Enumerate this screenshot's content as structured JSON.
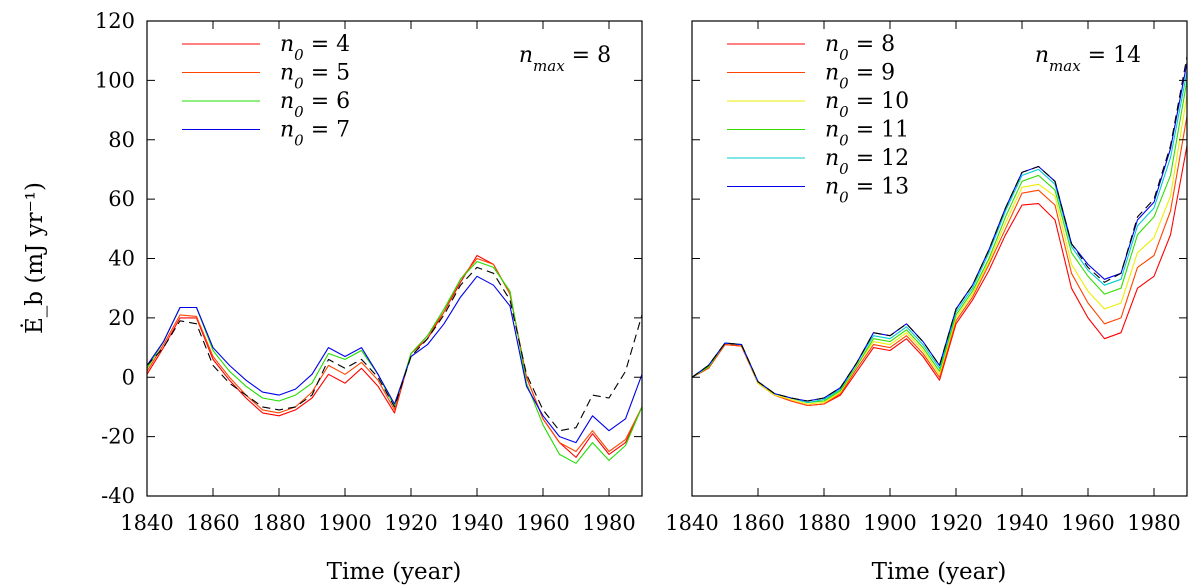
{
  "chart_data": [
    {
      "type": "line",
      "panel": "left",
      "xlabel": "Time (year)",
      "ylabel": "Ė_b (mJ yr⁻¹)",
      "xlim": [
        1840,
        1990
      ],
      "ylim": [
        -40,
        120
      ],
      "xticks": [
        "1840",
        "1860",
        "1880",
        "1900",
        "1920",
        "1940",
        "1960",
        "1980"
      ],
      "yticks": [
        "-40",
        "-20",
        "0",
        "20",
        "40",
        "60",
        "80",
        "100",
        "120"
      ],
      "annotation": "n_max = 8",
      "legend_position": "top-left",
      "x": [
        1840,
        1845,
        1850,
        1855,
        1860,
        1865,
        1870,
        1875,
        1880,
        1885,
        1890,
        1895,
        1900,
        1905,
        1910,
        1915,
        1920,
        1925,
        1930,
        1935,
        1940,
        1945,
        1950,
        1955,
        1960,
        1965,
        1970,
        1975,
        1980,
        1985,
        1990
      ],
      "series": [
        {
          "name": "n_0 = 4",
          "color": "#ff0000",
          "dash": false,
          "values": [
            1,
            10,
            20,
            20,
            6,
            -1,
            -7,
            -12,
            -13,
            -11,
            -7,
            1,
            -2,
            3,
            -3,
            -12,
            8,
            13,
            22,
            32,
            41,
            38,
            28,
            0,
            -14,
            -22,
            -27,
            -19,
            -26,
            -22,
            -10
          ]
        },
        {
          "name": "n_0 = 5",
          "color": "#ff4400",
          "dash": false,
          "values": [
            2,
            11,
            21,
            20.5,
            7,
            0,
            -6,
            -11,
            -12,
            -10,
            -5,
            4,
            1,
            5,
            -1,
            -11,
            8,
            14,
            22,
            33,
            40,
            38,
            28,
            0,
            -14,
            -22,
            -25,
            -18,
            -25,
            -21,
            -10
          ]
        },
        {
          "name": "n_0 = 6",
          "color": "#22dd00",
          "dash": false,
          "values": [
            3,
            12,
            23.5,
            23.5,
            9,
            2,
            -3,
            -7,
            -8,
            -6,
            -2,
            8,
            6,
            9,
            1,
            -10,
            8,
            14,
            23,
            33,
            39,
            37,
            29,
            -2,
            -16,
            -26,
            -29,
            -22,
            -28,
            -23,
            -10
          ]
        },
        {
          "name": "n_0 = 7",
          "color": "#0000ee",
          "dash": false,
          "values": [
            4,
            12,
            23.5,
            23.5,
            10,
            4,
            -1,
            -5,
            -6,
            -4,
            1,
            10,
            7,
            10,
            1,
            -9,
            7,
            11,
            18,
            27,
            34,
            31,
            24,
            -3,
            -13,
            -20,
            -22,
            -13,
            -18,
            -14,
            1
          ]
        },
        {
          "name": "",
          "color": "#000000",
          "dash": true,
          "values": [
            4,
            10,
            19,
            18,
            4,
            -2,
            -6,
            -10,
            -11,
            -10,
            -6,
            6,
            3,
            6,
            0,
            -10,
            7,
            13,
            21,
            31,
            37,
            35,
            26,
            1,
            -11,
            -18,
            -17,
            -6,
            -7,
            2,
            21
          ]
        }
      ]
    },
    {
      "type": "line",
      "panel": "right",
      "xlabel": "Time (year)",
      "ylabel": "",
      "xlim": [
        1840,
        1990
      ],
      "ylim": [
        -40,
        120
      ],
      "xticks": [
        "1840",
        "1860",
        "1880",
        "1900",
        "1920",
        "1940",
        "1960",
        "1980"
      ],
      "yticks": [],
      "annotation": "n_max = 14",
      "legend_position": "top-left",
      "x": [
        1840,
        1845,
        1850,
        1855,
        1860,
        1865,
        1870,
        1875,
        1880,
        1885,
        1890,
        1895,
        1900,
        1905,
        1910,
        1915,
        1920,
        1925,
        1930,
        1935,
        1940,
        1945,
        1950,
        1955,
        1960,
        1965,
        1970,
        1975,
        1980,
        1985,
        1990
      ],
      "series": [
        {
          "name": "n_0 = 8",
          "color": "#ff0000",
          "dash": false,
          "values": [
            0,
            3,
            11,
            10.5,
            -2,
            -6,
            -8,
            -9.5,
            -9,
            -6,
            2,
            10,
            9,
            13,
            7,
            -1,
            18,
            26,
            36,
            48,
            58,
            58.5,
            53,
            30,
            20,
            13,
            15,
            30,
            34,
            48,
            78
          ]
        },
        {
          "name": "n_0 = 9",
          "color": "#ff4400",
          "dash": false,
          "values": [
            0,
            3,
            11,
            10.5,
            -2,
            -6,
            -8,
            -9.5,
            -9,
            -5.5,
            3,
            11,
            10,
            14,
            8,
            0,
            19,
            27,
            38,
            50,
            62,
            63,
            58,
            35,
            25,
            18,
            20,
            37,
            41,
            56,
            88
          ]
        },
        {
          "name": "n_0 = 10",
          "color": "#eeee00",
          "dash": false,
          "values": [
            0,
            3.5,
            11.5,
            11,
            -2,
            -6,
            -7.5,
            -9,
            -8.5,
            -5,
            4,
            12,
            11,
            15,
            9,
            1,
            20,
            28,
            39,
            52,
            64,
            65,
            61,
            38,
            29,
            23,
            25,
            42,
            47,
            61,
            95
          ]
        },
        {
          "name": "n_0 = 11",
          "color": "#33dd00",
          "dash": false,
          "values": [
            0,
            3.5,
            11.5,
            11,
            -1.5,
            -5.5,
            -7,
            -8.5,
            -8,
            -4.5,
            4,
            13,
            12,
            16,
            10,
            2,
            21,
            29,
            40,
            54,
            66,
            68,
            63,
            42,
            34,
            28,
            30,
            48,
            54,
            68,
            100
          ]
        },
        {
          "name": "n_0 = 12",
          "color": "#00cccc",
          "dash": false,
          "values": [
            0,
            4,
            11.5,
            11,
            -1.5,
            -5.5,
            -7,
            -8.5,
            -7.5,
            -4,
            5,
            14,
            13,
            17,
            11,
            3,
            22,
            30,
            42,
            56,
            68,
            70,
            65,
            44,
            36,
            31,
            33,
            51,
            57,
            74,
            103
          ]
        },
        {
          "name": "n_0 = 13",
          "color": "#0000ee",
          "dash": false,
          "values": [
            0,
            4,
            11.5,
            11,
            -1.5,
            -5.5,
            -7,
            -8,
            -7,
            -3.5,
            5,
            15,
            14,
            18,
            12,
            4,
            23,
            31,
            43,
            57,
            69,
            71,
            66,
            45,
            38,
            33,
            35,
            53,
            59,
            77,
            106
          ]
        },
        {
          "name": "",
          "color": "#000000",
          "dash": true,
          "values": [
            0,
            4,
            11.5,
            11,
            -1.5,
            -5.5,
            -7,
            -8,
            -7,
            -3.5,
            5,
            15,
            14,
            18,
            12,
            4,
            23,
            31,
            43,
            57,
            69,
            71,
            66,
            45,
            37,
            32,
            35,
            54,
            60,
            78,
            108
          ]
        }
      ]
    }
  ]
}
